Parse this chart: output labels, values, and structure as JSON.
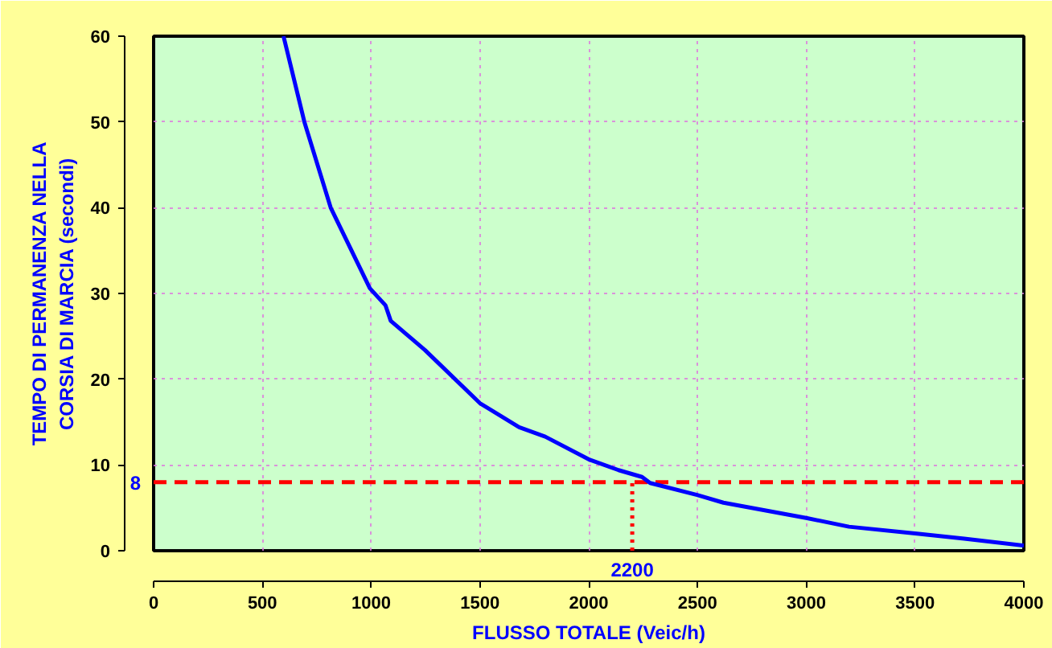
{
  "chart_data": {
    "type": "line",
    "xlabel": "FLUSSO TOTALE (Veic/h)",
    "ylabel": "TEMPO DI PERMANENZA NELLA\nCORSIA DI MARCIA (secondi)",
    "x": [
      597,
      693,
      814,
      994,
      1066,
      1090,
      1247,
      1500,
      1680,
      1800,
      2005,
      2137,
      2245,
      2282,
      2498,
      2619,
      3004,
      3196,
      3509,
      3726,
      4000
    ],
    "series": [
      {
        "color": "#0000ff",
        "values": [
          60,
          50,
          40,
          30.6,
          28.6,
          26.8,
          23.4,
          17.2,
          14.4,
          13.3,
          10.6,
          9.4,
          8.6,
          7.9,
          6.5,
          5.6,
          3.8,
          2.8,
          2.0,
          1.4,
          0.6
        ]
      }
    ],
    "xlim": [
      0,
      4000
    ],
    "xticks": [
      0,
      500,
      1000,
      1500,
      2000,
      2500,
      3000,
      3500,
      4000
    ],
    "ylim": [
      0,
      60
    ],
    "yticks": [
      0,
      10,
      20,
      30,
      40,
      50,
      60
    ],
    "ref_lines": [
      {
        "axis": "y",
        "value": 8,
        "label": "8",
        "color": "#ff0000",
        "line_style": "dashed"
      },
      {
        "axis": "x",
        "value": 2200,
        "label": "2200",
        "color": "#ff0000",
        "line_style": "dotted"
      }
    ],
    "grid": true,
    "marker": "none",
    "line_style": "solid"
  }
}
